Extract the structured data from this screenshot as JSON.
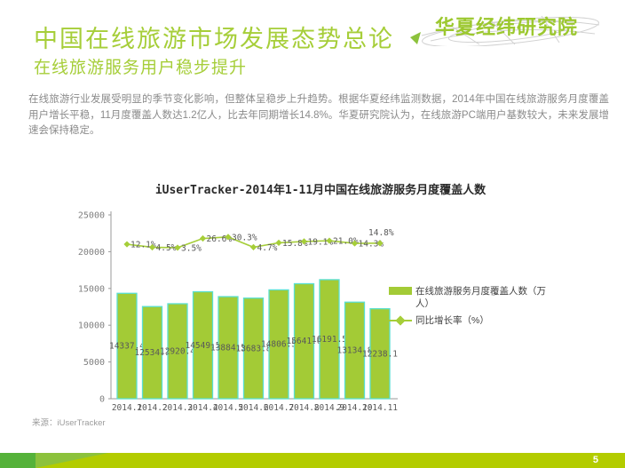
{
  "header": {
    "logo_text": "华夏经纬研究院",
    "title": "中国在线旅游市场发展态势总论",
    "subtitle": "在线旅游服务用户稳步提升"
  },
  "body_paragraph": "在线旅游行业发展受明显的季节变化影响，但整体呈稳步上升趋势。根据华夏经纬监测数据，2014年中国在线旅游服务月度覆盖用户增长平稳，11月度覆盖人数达1.2亿人，比去年同期增长14.8%。华夏研究院认为，在线旅游PC端用户基数较大，未来发展增速会保持稳定。",
  "chart_data": {
    "type": "bar",
    "title": "iUserTracker-2014年1-11月中国在线旅游服务月度覆盖人数",
    "categories": [
      "2014.1",
      "2014.2",
      "2014.3",
      "2014.4",
      "2014.5",
      "2014.6",
      "2014.7",
      "2014.8",
      "2014.9",
      "2014.10",
      "2014.11"
    ],
    "series": [
      {
        "name": "在线旅游服务月度覆盖人数（万人）",
        "type": "bar",
        "values": [
          14337.4,
          12534.1,
          12920.4,
          14549.5,
          13884.5,
          13683.8,
          14806.5,
          15641.6,
          16191.5,
          13134.8,
          12238.1
        ]
      },
      {
        "name": "同比增长率（%）",
        "type": "line",
        "values": [
          12.1,
          4.5,
          3.5,
          26.6,
          30.3,
          4.7,
          15.8,
          19.1,
          21.0,
          14.3,
          14.8
        ]
      }
    ],
    "ylim": [
      0,
      25000
    ],
    "yticks": [
      0,
      5000,
      10000,
      15000,
      20000,
      25000
    ],
    "legend_position": "right",
    "grid": "off",
    "colors": {
      "bar_fill": "#a3cb36",
      "bar_stroke": "#5adfd0",
      "line": "#a6ce39",
      "axis": "#9a9a9a",
      "label_text": "#595959",
      "tick_text": "#7f7f7f"
    }
  },
  "source_note": "来源：iUserTracker",
  "footer": {
    "page_number": "5",
    "bar_color": "#b3cc00",
    "accent_dark": "#55b23a",
    "accent_mid": "#8cc23c"
  }
}
